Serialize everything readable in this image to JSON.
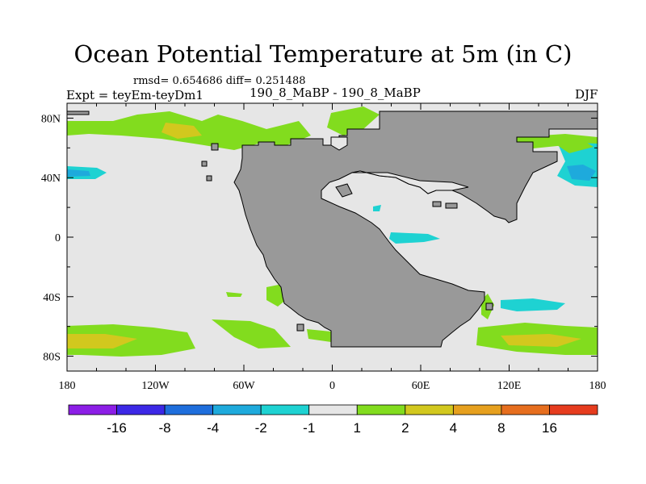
{
  "title": "Ocean Potential Temperature at 5m (in C)",
  "stats_line": "rmsd= 0.654686 diff= 0.251488",
  "expt_line": "Expt = teyEm-teyDm1",
  "run_line": "190_8_MaBP - 190_8_MaBP",
  "season": "DJF",
  "map": {
    "projection": "cylindrical equidistant",
    "lon_range": [
      -180,
      180
    ],
    "lat_range": [
      -90,
      90
    ],
    "x_ticks": [
      {
        "lon": -180,
        "label": "180"
      },
      {
        "lon": -120,
        "label": "120W"
      },
      {
        "lon": -60,
        "label": "60W"
      },
      {
        "lon": 0,
        "label": "0"
      },
      {
        "lon": 60,
        "label": "60E"
      },
      {
        "lon": 120,
        "label": "120E"
      },
      {
        "lon": 180,
        "label": "180"
      }
    ],
    "y_ticks": [
      {
        "lat": 80,
        "label": "80N"
      },
      {
        "lat": 40,
        "label": "40N"
      },
      {
        "lat": 0,
        "label": "0"
      },
      {
        "lat": -40,
        "label": "40S"
      },
      {
        "lat": -80,
        "label": "80S"
      }
    ],
    "ocean_color": "#e6e6e6",
    "land_color": "#999999",
    "grid_color": "#000000"
  },
  "colorbar": {
    "colors": [
      "#8c1ee6",
      "#3c28e6",
      "#1e6edc",
      "#1eaadc",
      "#1ed2d2",
      "#e6e6e6",
      "#82dc1e",
      "#d2c81e",
      "#e6a01e",
      "#e66e1e",
      "#e63c1e"
    ],
    "labels": [
      "-16",
      "-8",
      "-4",
      "-2",
      "-1",
      "1",
      "2",
      "4",
      "8",
      "16"
    ]
  }
}
